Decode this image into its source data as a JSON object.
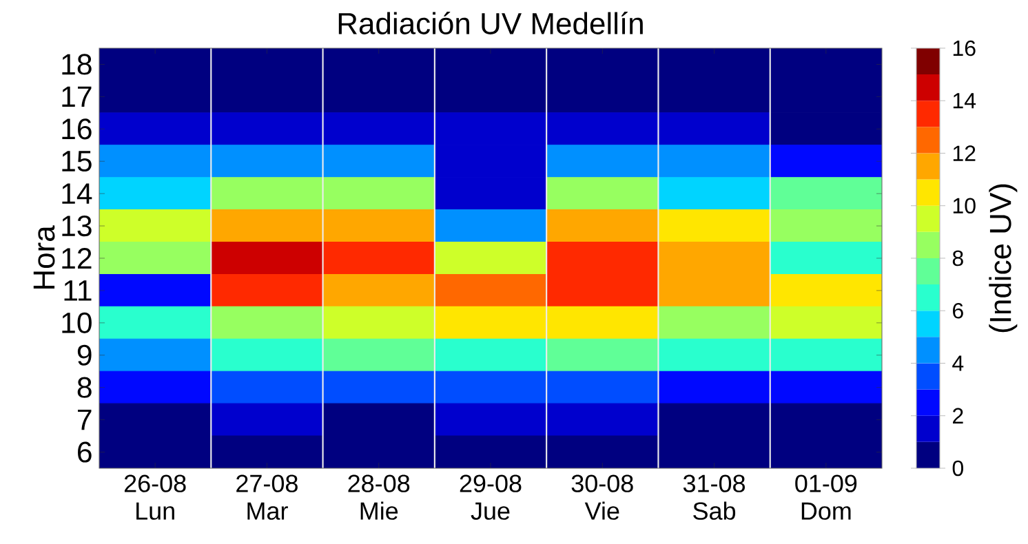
{
  "chart_data": {
    "type": "heatmap",
    "title": "Radiación UV Medellín",
    "ylabel": "Hora",
    "clabel": "(Indice UV)",
    "categories": [
      "26-08 Lun",
      "27-08 Mar",
      "28-08 Mie",
      "29-08 Jue",
      "30-08 Vie",
      "31-08 Sab",
      "01-09 Dom"
    ],
    "y_categories": [
      "18",
      "17",
      "16",
      "15",
      "14",
      "13",
      "12",
      "11",
      "10",
      "9",
      "8",
      "7",
      "6"
    ],
    "cells": [
      [
        0.5,
        0.5,
        0.5,
        0.5,
        0.5,
        0.5,
        0.5
      ],
      [
        0.5,
        0.5,
        0.5,
        0.5,
        0.5,
        0.5,
        0.5
      ],
      [
        1.5,
        1.5,
        1.5,
        1.5,
        1.5,
        1.5,
        0.5
      ],
      [
        4.5,
        4.5,
        4.5,
        1.5,
        4.5,
        4.5,
        2.5
      ],
      [
        5.5,
        8.5,
        8.5,
        1.5,
        8.5,
        5.5,
        7.5
      ],
      [
        9.5,
        11.5,
        11.5,
        4.5,
        11.5,
        10.5,
        8.5
      ],
      [
        8.5,
        14.5,
        13.5,
        9.5,
        13.5,
        11.5,
        6.5
      ],
      [
        2.5,
        13.5,
        11.5,
        12.5,
        13.5,
        11.5,
        10.5
      ],
      [
        6.5,
        8.5,
        9.5,
        10.5,
        10.5,
        8.5,
        9.5
      ],
      [
        4.5,
        6.5,
        7.5,
        6.5,
        7.5,
        6.5,
        6.5
      ],
      [
        2.5,
        3.5,
        3.5,
        3.5,
        3.5,
        2.5,
        2.5
      ],
      [
        0.5,
        1.5,
        0.5,
        1.5,
        1.5,
        0.5,
        0.5
      ],
      [
        0.5,
        0.5,
        0.5,
        0.5,
        0.5,
        0.5,
        0.5
      ]
    ],
    "clim": [
      0,
      16
    ],
    "cticks": [
      0,
      2,
      4,
      6,
      8,
      10,
      12,
      14,
      16
    ],
    "grid": "x"
  }
}
